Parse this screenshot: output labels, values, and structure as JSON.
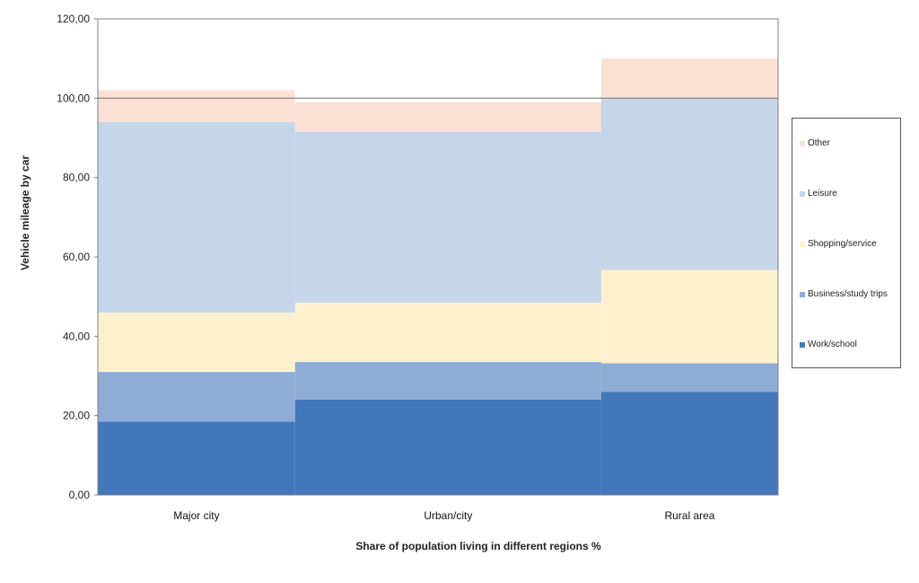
{
  "chart_data": {
    "type": "bar",
    "stacked": true,
    "variable_width": true,
    "categories": [
      "Major city",
      "Urban/city",
      "Rural area"
    ],
    "widths": [
      29,
      45,
      26
    ],
    "series": [
      {
        "name": "Work/school",
        "color": "#4277BC",
        "values": [
          18.5,
          24.0,
          26.0
        ]
      },
      {
        "name": "Business/study trips",
        "color": "#8EACD6",
        "values": [
          12.5,
          9.5,
          7.2
        ]
      },
      {
        "name": "Shopping/service",
        "color": "#FDF0CC",
        "values": [
          15.0,
          15.0,
          23.5
        ]
      },
      {
        "name": "Leisure",
        "color": "#C5D5EA",
        "values": [
          48.0,
          43.0,
          43.3
        ]
      },
      {
        "name": "Other",
        "color": "#FBE0D3",
        "values": [
          8.0,
          7.5,
          10.0
        ]
      }
    ],
    "reference_line": 100,
    "ylim": [
      0,
      120
    ],
    "yticks": [
      "0,00",
      "20,00",
      "40,00",
      "60,00",
      "80,00",
      "100,00",
      "120,00"
    ],
    "ylabel": "Vehicle mileage by car",
    "xlabel": "Share of population living in different regions %",
    "legend_position": "right"
  }
}
